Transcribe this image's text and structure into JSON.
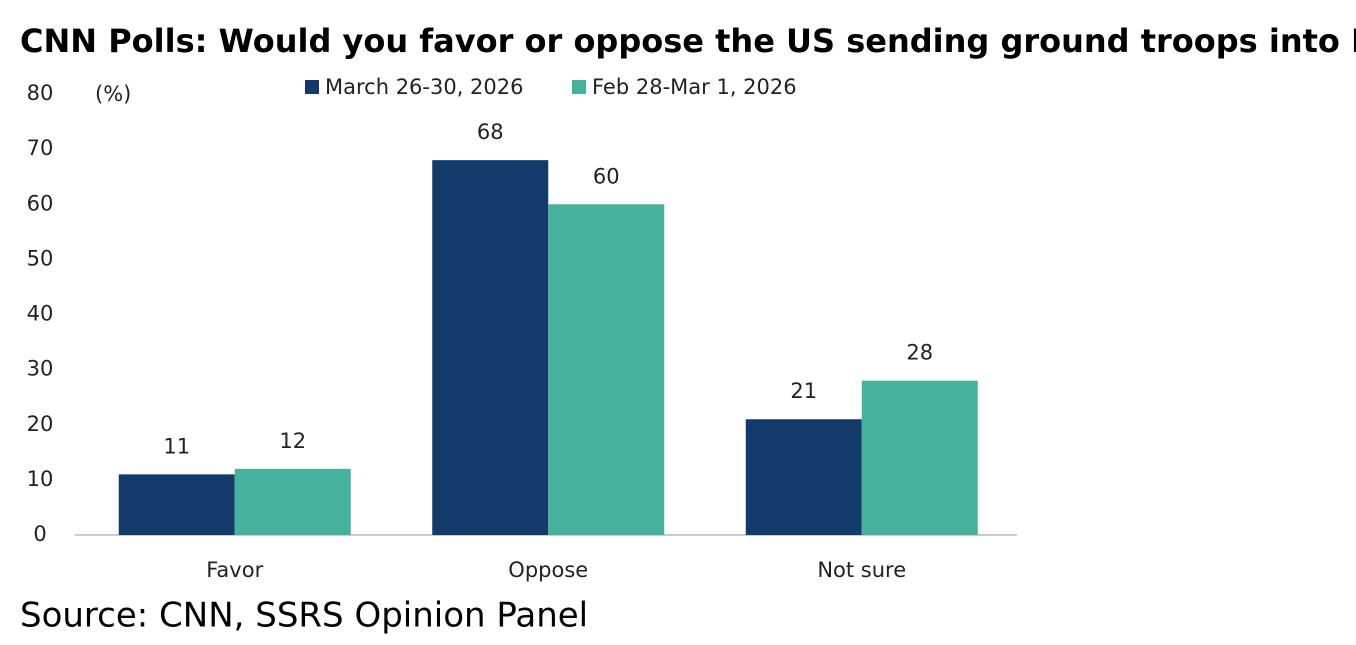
{
  "chart_data": {
    "type": "bar",
    "title": "CNN Polls: Would you favor or oppose the US sending ground troops into Iran",
    "y_label": "(%)",
    "categories": [
      "Favor",
      "Oppose",
      "Not sure"
    ],
    "series": [
      {
        "name": "March 26-30, 2026",
        "color": "#123b6b",
        "values": [
          11,
          68,
          21
        ]
      },
      {
        "name": "Feb 28-Mar 1, 2026",
        "color": "#46b29d",
        "values": [
          12,
          60,
          28
        ]
      }
    ],
    "ylim": [
      0,
      80
    ],
    "yticks": [
      0,
      10,
      20,
      30,
      40,
      50,
      60,
      70,
      80
    ],
    "grid": false,
    "legend": "top",
    "source": "Source: CNN, SSRS Opinion Panel"
  }
}
